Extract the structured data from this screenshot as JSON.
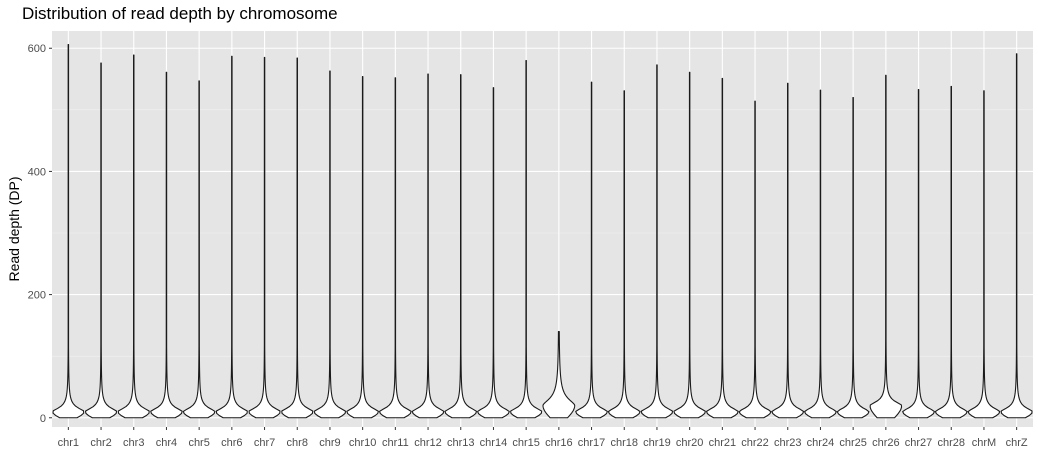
{
  "chart_data": {
    "type": "violin",
    "title": "Distribution of read depth by chromosome",
    "xlabel": "",
    "ylabel": "Read depth (DP)",
    "ylim": [
      -15,
      628
    ],
    "yticks": [
      0,
      200,
      400,
      600
    ],
    "grid": true,
    "categories": [
      "chr1",
      "chr2",
      "chr3",
      "chr4",
      "chr5",
      "chr6",
      "chr7",
      "chr8",
      "chr9",
      "chr10",
      "chr11",
      "chr12",
      "chr13",
      "chr14",
      "chr15",
      "chr16",
      "chr17",
      "chr18",
      "chr19",
      "chr20",
      "chr21",
      "chr22",
      "chr23",
      "chr24",
      "chr25",
      "chr26",
      "chr27",
      "chr28",
      "chrM",
      "chrZ"
    ],
    "max_values": [
      606,
      576,
      589,
      561,
      547,
      587,
      585,
      584,
      563,
      554,
      552,
      558,
      557,
      536,
      580,
      140,
      545,
      531,
      573,
      561,
      551,
      514,
      543,
      532,
      520,
      556,
      533,
      538,
      531,
      591
    ],
    "min_values": [
      0,
      0,
      0,
      0,
      0,
      0,
      0,
      0,
      0,
      0,
      0,
      0,
      0,
      0,
      0,
      0,
      0,
      0,
      0,
      0,
      0,
      0,
      0,
      0,
      0,
      0,
      0,
      0,
      0,
      0
    ],
    "mode_values": [
      10,
      10,
      10,
      10,
      10,
      10,
      10,
      10,
      10,
      10,
      10,
      10,
      10,
      10,
      10,
      20,
      10,
      10,
      10,
      10,
      10,
      10,
      10,
      10,
      10,
      20,
      10,
      10,
      10,
      10
    ]
  },
  "colors": {
    "panel": "#e5e5e5",
    "grid_major": "#ffffff",
    "grid_minor": "#f2f2f2",
    "violin_stroke": "#1a1a1a",
    "violin_fill": "#ffffff"
  }
}
